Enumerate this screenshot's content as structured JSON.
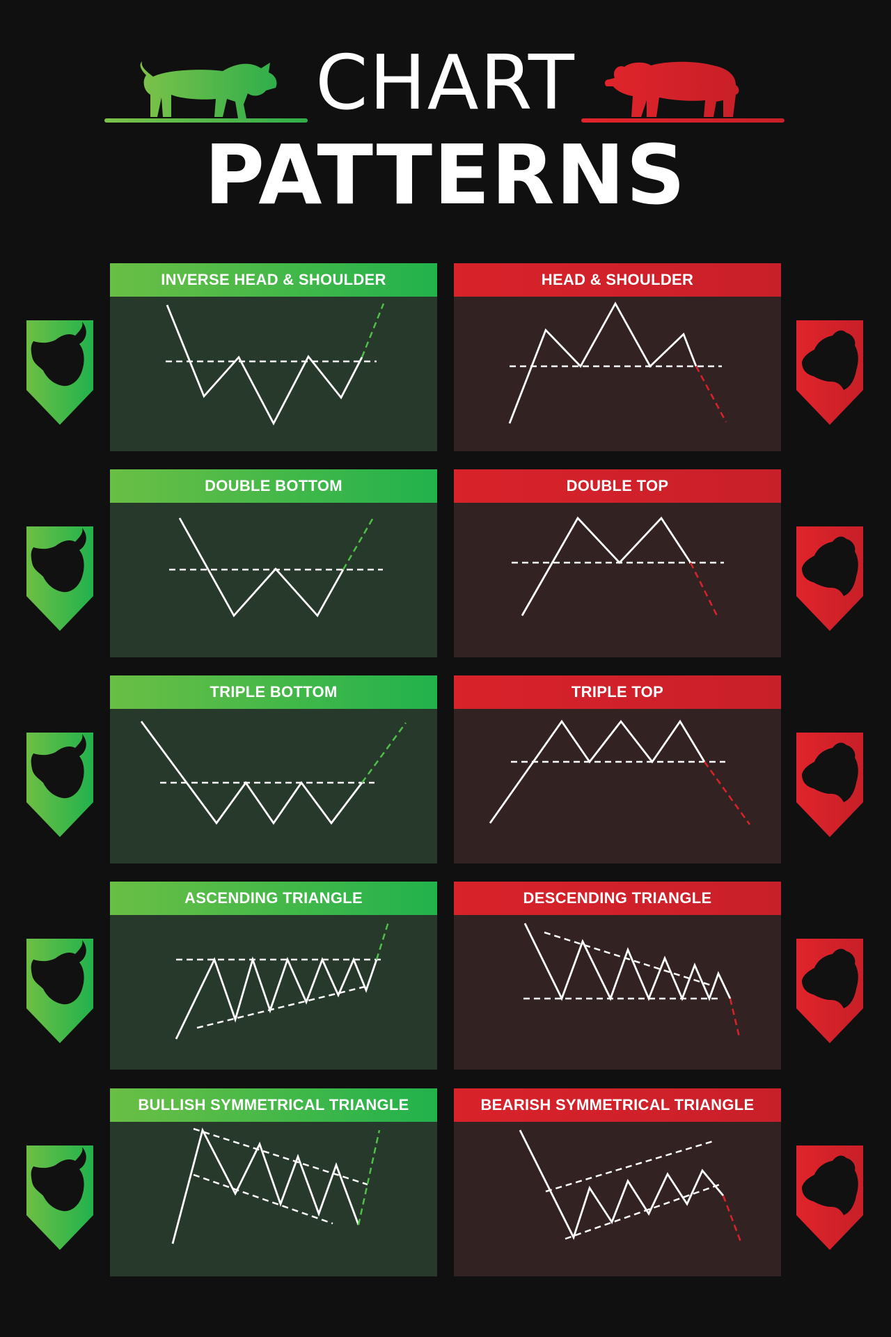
{
  "title": {
    "line1": "CHART",
    "line2": "PATTERNS"
  },
  "colors": {
    "bull": "#4fbf4a",
    "bear": "#d9232b",
    "bull_panel": "#27392b",
    "bear_panel": "#332222",
    "background": "#101010"
  },
  "icons": {
    "hero_left": "bull-icon",
    "hero_right": "bear-icon",
    "badge_bull": "bull-head-icon",
    "badge_bear": "bear-head-icon"
  },
  "patterns": [
    {
      "label": "INVERSE HEAD & SHOULDER",
      "sentiment": "bullish"
    },
    {
      "label": "HEAD & SHOULDER",
      "sentiment": "bearish"
    },
    {
      "label": "DOUBLE BOTTOM",
      "sentiment": "bullish"
    },
    {
      "label": "DOUBLE TOP",
      "sentiment": "bearish"
    },
    {
      "label": "TRIPLE BOTTOM",
      "sentiment": "bullish"
    },
    {
      "label": "TRIPLE TOP",
      "sentiment": "bearish"
    },
    {
      "label": "ASCENDING TRIANGLE",
      "sentiment": "bullish"
    },
    {
      "label": "DESCENDING TRIANGLE",
      "sentiment": "bearish"
    },
    {
      "label": "BULLISH SYMMETRICAL TRIANGLE",
      "sentiment": "bullish"
    },
    {
      "label": "BEARISH SYMMETRICAL TRIANGLE",
      "sentiment": "bearish"
    }
  ]
}
